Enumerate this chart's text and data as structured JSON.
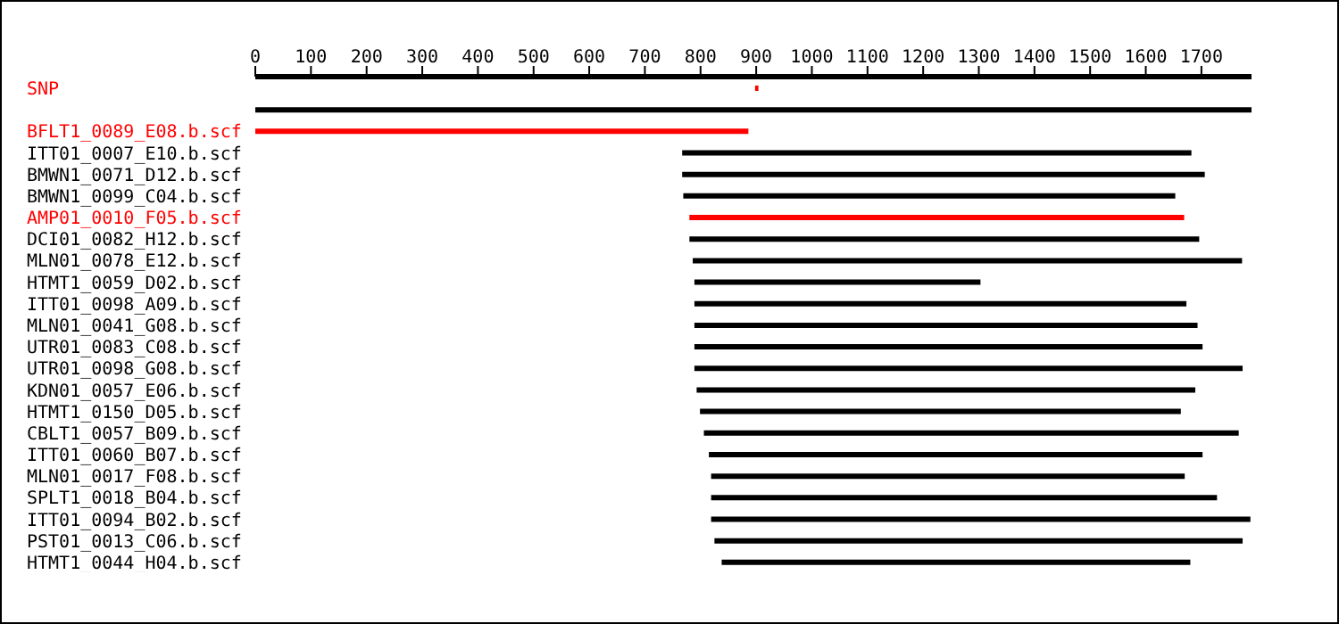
{
  "chart_data": {
    "type": "bar",
    "orientation": "horizontal",
    "categories": [
      "SNP",
      null,
      "BFLT1_0089_E08.b.scf",
      "ITT01_0007_E10.b.scf",
      "BMWN1_0071_D12.b.scf",
      "BMWN1_0099_C04.b.scf",
      "AMP01_0010_F05.b.scf",
      "DCI01_0082_H12.b.scf",
      "MLN01_0078_E12.b.scf",
      "HTMT1_0059_D02.b.scf",
      "ITT01_0098_A09.b.scf",
      "MLN01_0041_G08.b.scf",
      "UTR01_0083_C08.b.scf",
      "UTR01_0098_G08.b.scf",
      "KDN01_0057_E06.b.scf",
      "HTMT1_0150_D05.b.scf",
      "CBLT1_0057_B09.b.scf",
      "ITT01_0060_B07.b.scf",
      "MLN01_0017_F08.b.scf",
      "SPLT1_0018_B04.b.scf",
      "ITT01_0094_B02.b.scf",
      "PST01_0013_C06.b.scf",
      "HTMT1_0044_H04.b.scf"
    ],
    "base": [
      898,
      0,
      0,
      767,
      767,
      769,
      780,
      780,
      786,
      789,
      789,
      789,
      789,
      789,
      793,
      799,
      806,
      815,
      819,
      819,
      819,
      825,
      838
    ],
    "values": [
      6,
      1790,
      886,
      915,
      939,
      884,
      889,
      916,
      987,
      514,
      884,
      904,
      913,
      985,
      896,
      864,
      961,
      887,
      851,
      909,
      969,
      949,
      842
    ],
    "colors": [
      "#ff0000",
      "#000000",
      "#ff0000",
      "#000000",
      "#000000",
      "#000000",
      "#ff0000",
      "#000000",
      "#000000",
      "#000000",
      "#000000",
      "#000000",
      "#000000",
      "#000000",
      "#000000",
      "#000000",
      "#000000",
      "#000000",
      "#000000",
      "#000000",
      "#000000",
      "#000000",
      "#000000"
    ],
    "xlim": [
      0,
      1790
    ],
    "xticks": [
      0,
      100,
      200,
      300,
      400,
      500,
      600,
      700,
      800,
      900,
      1000,
      1100,
      1200,
      1300,
      1400,
      1500,
      1600,
      1700
    ],
    "grid": false,
    "legend": false
  }
}
